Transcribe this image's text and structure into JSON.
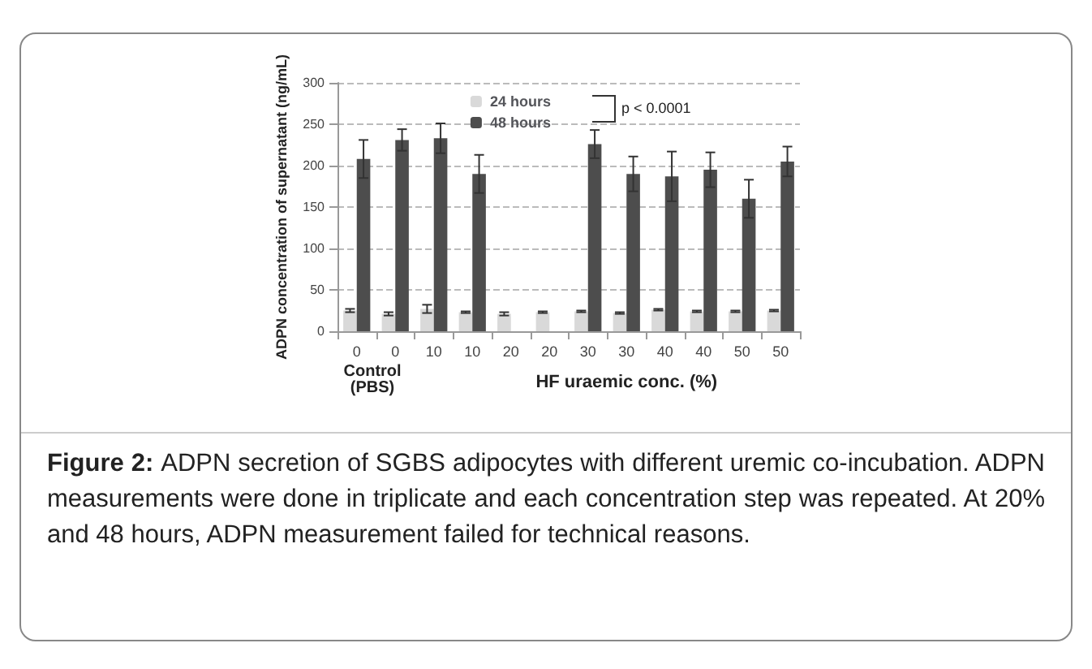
{
  "chart_data": {
    "type": "bar",
    "ylabel": "ADPN concentration of supernatant (ng/mL)",
    "xlabel": "HF uraemic conc. (%)",
    "categories": [
      "0",
      "0",
      "10",
      "10",
      "20",
      "20",
      "30",
      "30",
      "40",
      "40",
      "50",
      "50"
    ],
    "series": [
      {
        "name": "24 hours",
        "color": "#d9d9d9",
        "values": [
          25,
          21,
          27,
          23,
          21,
          23,
          24,
          22,
          26,
          24,
          24,
          25
        ],
        "errors": [
          2,
          2,
          5,
          1,
          2,
          1,
          1,
          1,
          1,
          1,
          1,
          1
        ]
      },
      {
        "name": "48 hours",
        "color": "#4d4d4d",
        "values": [
          208,
          231,
          233,
          190,
          null,
          null,
          226,
          190,
          187,
          195,
          160,
          205
        ],
        "errors": [
          23,
          13,
          18,
          23,
          null,
          null,
          17,
          21,
          30,
          21,
          23,
          18
        ]
      }
    ],
    "ylim": [
      0,
      300
    ],
    "yticks": [
      0,
      50,
      100,
      150,
      200,
      250,
      300
    ],
    "grid": "y",
    "legend": "top",
    "annotations": [
      "Control\n(PBS)",
      "p < 0.0001",
      "Figure 2:",
      "ADPN secretion of SGBS adipocytes with different uremic co-incubation. ADPN measurements were done in triplicate and each concentration step was repeated.  At 20% and 48 hours, ADPN measurement failed for technical reasons."
    ]
  }
}
